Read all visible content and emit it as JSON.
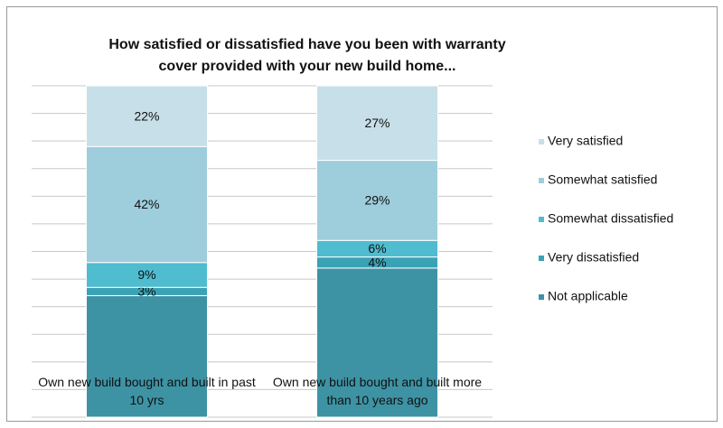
{
  "chart_data": {
    "type": "stacked-bar",
    "title": "How satisfied or dissatisfied have you been with warranty cover provided with your new build home...",
    "categories": [
      "Own new build bought and built in past 10 yrs",
      "Own new build bought and built more than 10 years ago"
    ],
    "series": [
      {
        "name": "Not applicable",
        "color": "#3d93a4",
        "values": [
          44,
          54
        ]
      },
      {
        "name": "Very dissatisfied",
        "color": "#3aa2b5",
        "values": [
          3,
          4
        ],
        "value_labels": [
          "3%",
          "4%"
        ]
      },
      {
        "name": "Somewhat dissatisfied",
        "color": "#4fbcd0",
        "values": [
          9,
          6
        ],
        "value_labels": [
          "9%",
          "6%"
        ]
      },
      {
        "name": "Somewhat satisfied",
        "color": "#9ecddc",
        "values": [
          42,
          29
        ],
        "value_labels": [
          "42%",
          "29%"
        ]
      },
      {
        "name": "Very satisfied",
        "color": "#c7dfe8",
        "values": [
          22,
          27
        ],
        "value_labels": [
          "22%",
          "27%"
        ]
      }
    ],
    "ylim": [
      0,
      120
    ],
    "yticks": [
      0,
      10,
      20,
      30,
      40,
      50,
      60,
      70,
      80,
      90,
      100,
      110,
      120
    ],
    "grid": true,
    "legend": "right"
  }
}
